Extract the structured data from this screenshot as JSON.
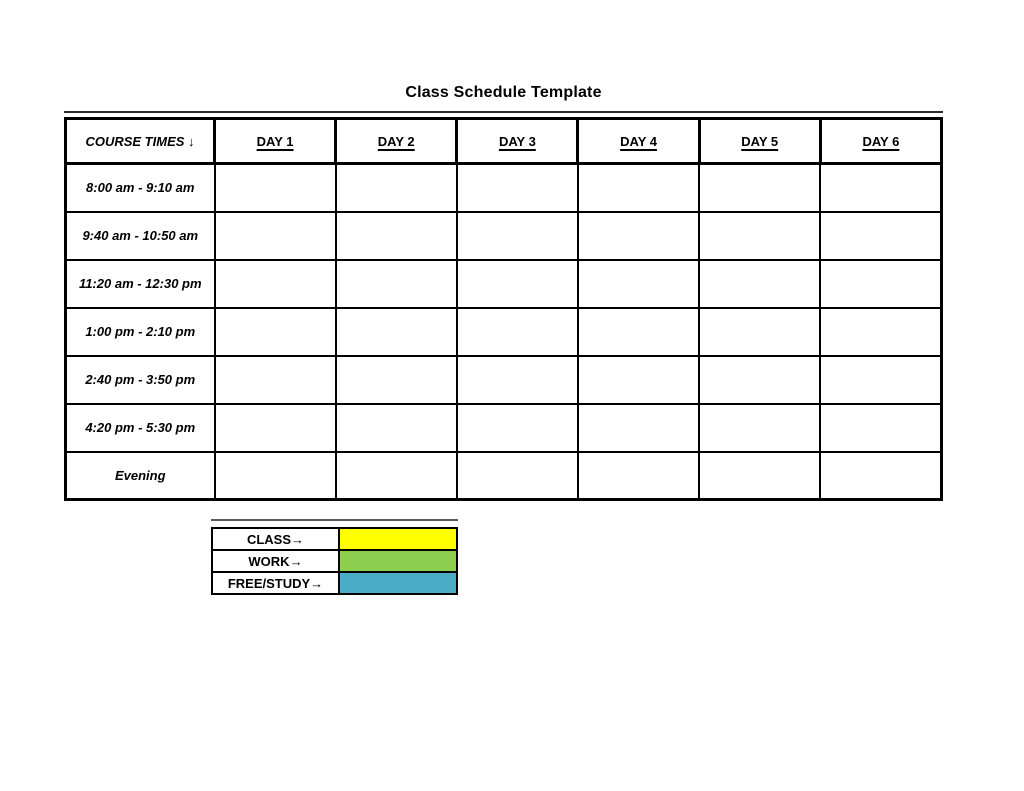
{
  "document": {
    "title": "Class Schedule Template"
  },
  "schedule_table": {
    "course_times_header": "COURSE TIMES ↓",
    "day_headers": [
      "DAY 1",
      "DAY 2",
      "DAY 3",
      "DAY 4",
      "DAY 5",
      "DAY 6"
    ],
    "time_slots": [
      "8:00 am - 9:10 am",
      "9:40 am - 10:50 am",
      "11:20 am - 12:30 pm",
      "1:00 pm - 2:10 pm",
      "2:40 pm - 3:50 pm",
      "4:20 pm - 5:30 pm",
      "Evening"
    ]
  },
  "legend": {
    "items": [
      {
        "label": "CLASS→",
        "color": "#FFFF00"
      },
      {
        "label": "WORK→",
        "color": "#8DCE4F"
      },
      {
        "label": "FREE/STUDY→",
        "color": "#4BACC6"
      }
    ]
  }
}
